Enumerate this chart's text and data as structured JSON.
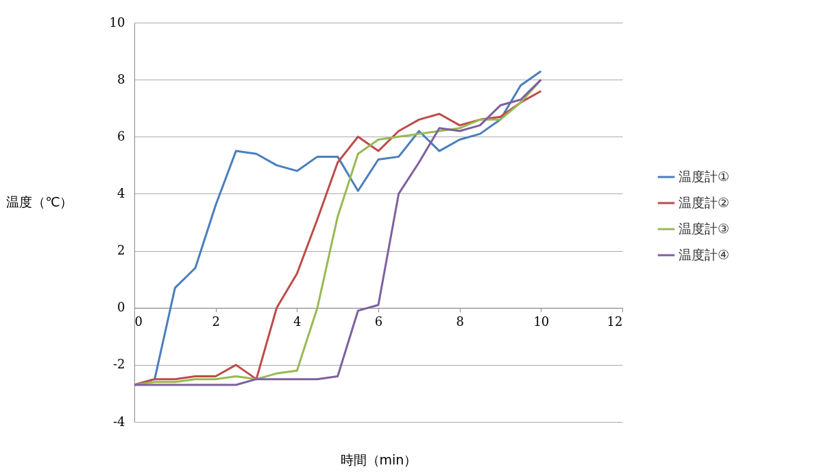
{
  "chart_data": {
    "type": "line",
    "xlabel": "時間（min）",
    "ylabel": "温度（℃）",
    "x": [
      0,
      0.5,
      1,
      1.5,
      2,
      2.5,
      3,
      3.5,
      4,
      4.5,
      5,
      5.5,
      6,
      6.5,
      7,
      7.5,
      8,
      8.5,
      9,
      9.5,
      10
    ],
    "series": [
      {
        "name": "温度計①",
        "color": "#4a7ebb",
        "values": [
          -2.7,
          -2.5,
          0.7,
          1.4,
          3.6,
          5.5,
          5.4,
          5.0,
          4.8,
          5.3,
          5.3,
          4.1,
          5.2,
          5.3,
          6.2,
          5.5,
          5.9,
          6.1,
          6.6,
          7.8,
          8.3
        ]
      },
      {
        "name": "温度計②",
        "color": "#be4b48",
        "values": [
          -2.7,
          -2.5,
          -2.5,
          -2.4,
          -2.4,
          -2.0,
          -2.5,
          0.0,
          1.2,
          3.1,
          5.1,
          6.0,
          5.5,
          6.2,
          6.6,
          6.8,
          6.4,
          6.6,
          6.7,
          7.2,
          7.6
        ]
      },
      {
        "name": "温度計③",
        "color": "#98b954",
        "values": [
          -2.7,
          -2.6,
          -2.6,
          -2.5,
          -2.5,
          -2.4,
          -2.5,
          -2.3,
          -2.2,
          0.0,
          3.2,
          5.4,
          5.9,
          6.0,
          6.1,
          6.2,
          6.3,
          6.6,
          6.6,
          7.2,
          8.0
        ]
      },
      {
        "name": "温度計④",
        "color": "#7d60a0",
        "values": [
          -2.7,
          -2.7,
          -2.7,
          -2.7,
          -2.7,
          -2.7,
          -2.5,
          -2.5,
          -2.5,
          -2.5,
          -2.4,
          -0.1,
          0.1,
          4.0,
          5.1,
          6.3,
          6.2,
          6.4,
          7.1,
          7.3,
          8.0
        ]
      }
    ],
    "xlim": [
      0,
      12
    ],
    "xticks": [
      0,
      2,
      4,
      6,
      8,
      10,
      12
    ],
    "ylim": [
      -4,
      10
    ],
    "yticks": [
      {
        "value": -4,
        "label": "-4"
      },
      {
        "value": -2,
        "label": "-2"
      },
      0,
      2,
      4,
      6,
      8,
      10
    ],
    "grid": "y",
    "legend": "right",
    "marker": "none",
    "line_style": "solid"
  }
}
